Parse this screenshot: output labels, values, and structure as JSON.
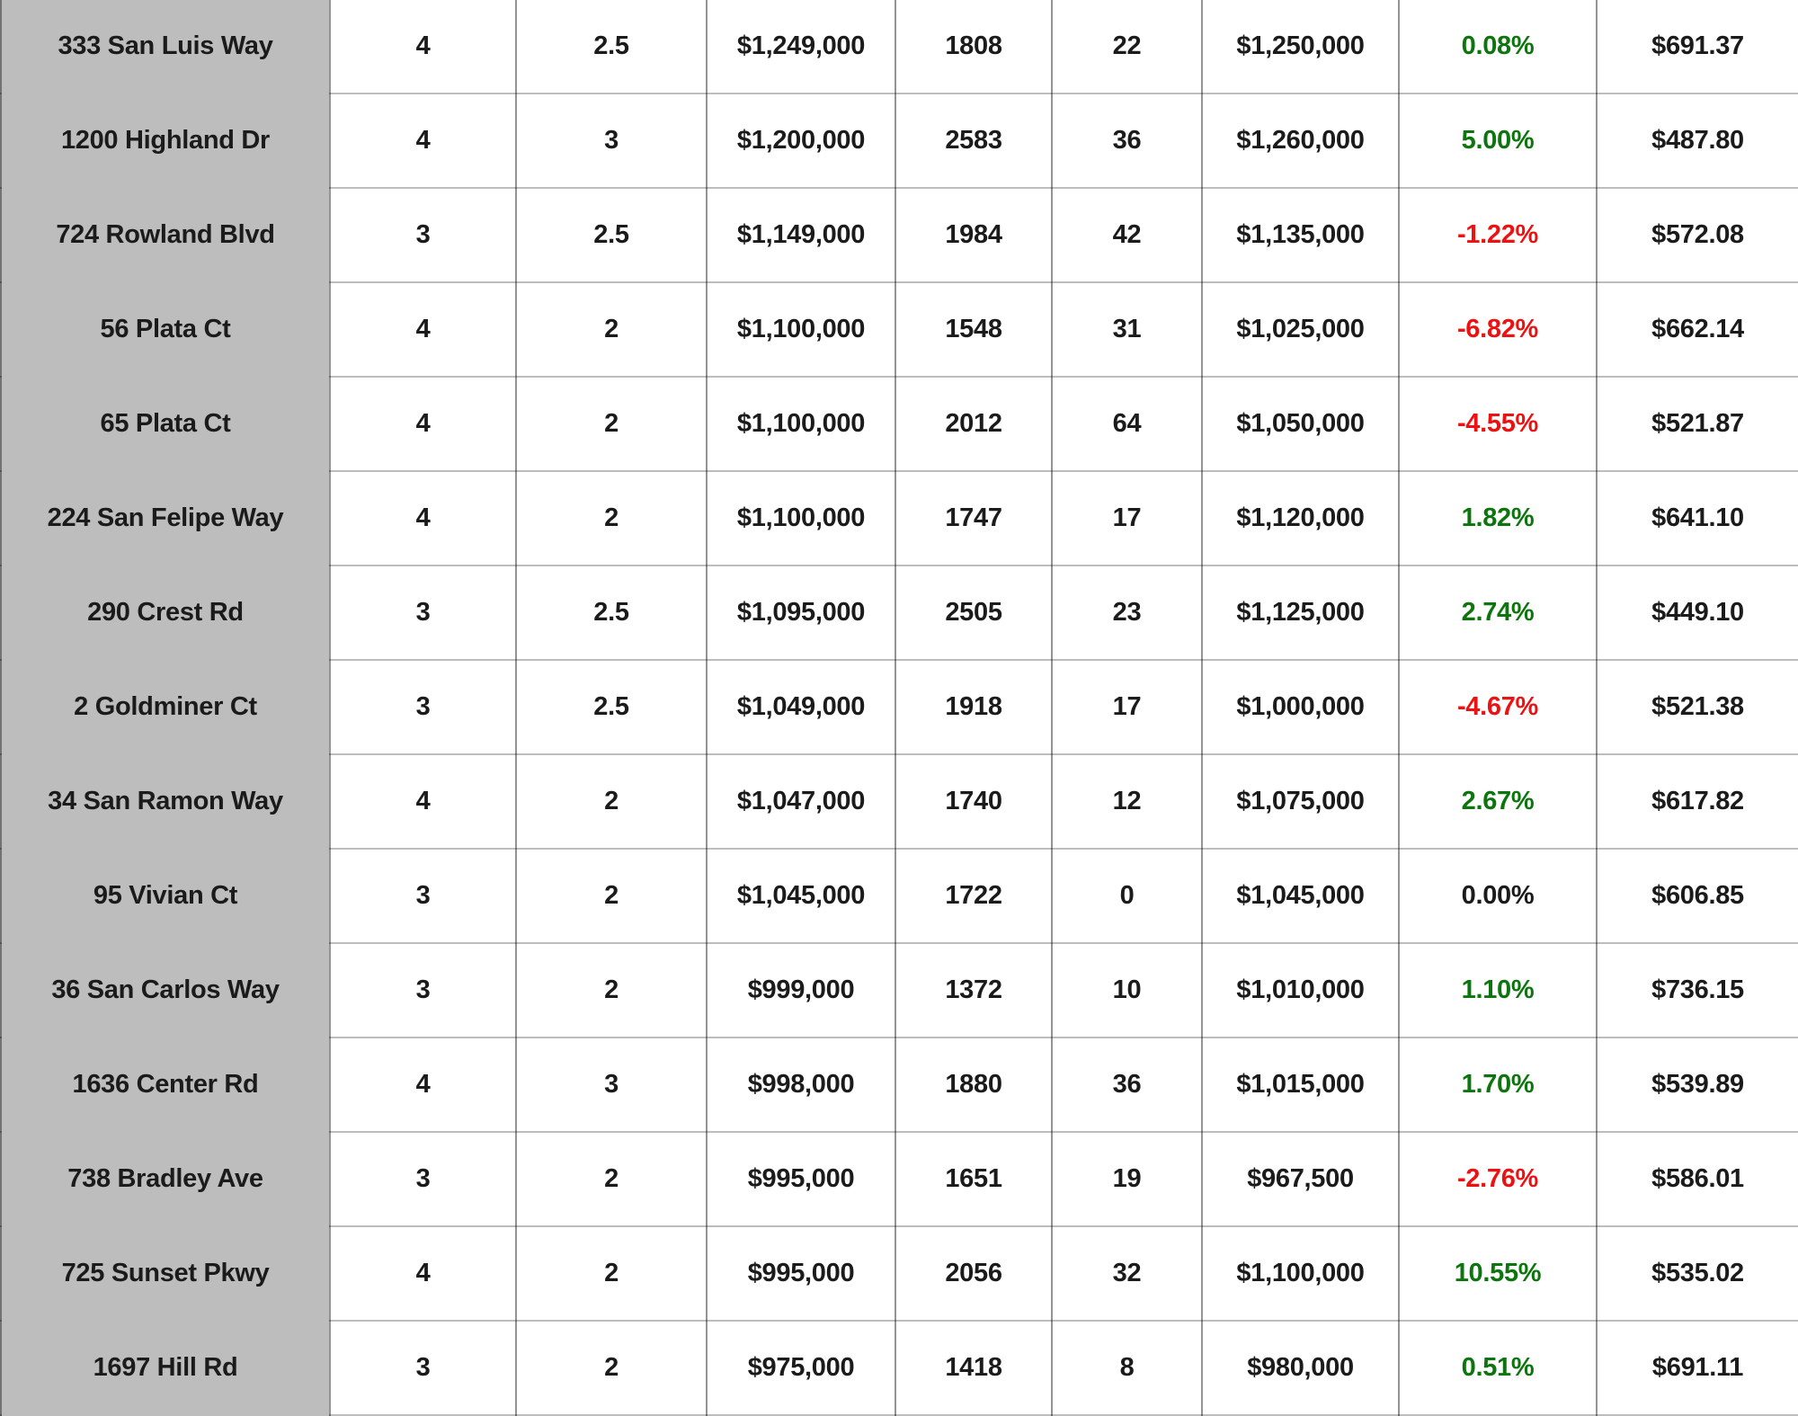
{
  "colors": {
    "positive": "#0d750d",
    "negative": "#ee1111",
    "neutral_text": "#1b1b1b",
    "address_column_bg": "#bdbdbd"
  },
  "table": {
    "columns": [
      {
        "key": "address",
        "name": "address"
      },
      {
        "key": "beds",
        "name": "beds"
      },
      {
        "key": "baths",
        "name": "baths"
      },
      {
        "key": "list_price",
        "name": "list-price"
      },
      {
        "key": "sqft",
        "name": "square-feet"
      },
      {
        "key": "days_on_market",
        "name": "days-on-market"
      },
      {
        "key": "sold_price",
        "name": "sold-price"
      },
      {
        "key": "pct_change",
        "name": "percent-over-under-list"
      },
      {
        "key": "price_per_sqft",
        "name": "price-per-sqft"
      }
    ],
    "rows": [
      {
        "address": "333 San Luis Way",
        "beds": "4",
        "baths": "2.5",
        "list_price": "$1,249,000",
        "sqft": "1808",
        "days_on_market": "22",
        "sold_price": "$1,250,000",
        "pct_change": "0.08%",
        "pct_color": "green",
        "price_per_sqft": "$691.37"
      },
      {
        "address": "1200 Highland Dr",
        "beds": "4",
        "baths": "3",
        "list_price": "$1,200,000",
        "sqft": "2583",
        "days_on_market": "36",
        "sold_price": "$1,260,000",
        "pct_change": "5.00%",
        "pct_color": "green",
        "price_per_sqft": "$487.80"
      },
      {
        "address": "724 Rowland Blvd",
        "beds": "3",
        "baths": "2.5",
        "list_price": "$1,149,000",
        "sqft": "1984",
        "days_on_market": "42",
        "sold_price": "$1,135,000",
        "pct_change": "-1.22%",
        "pct_color": "red",
        "price_per_sqft": "$572.08"
      },
      {
        "address": "56 Plata Ct",
        "beds": "4",
        "baths": "2",
        "list_price": "$1,100,000",
        "sqft": "1548",
        "days_on_market": "31",
        "sold_price": "$1,025,000",
        "pct_change": "-6.82%",
        "pct_color": "red",
        "price_per_sqft": "$662.14"
      },
      {
        "address": "65 Plata Ct",
        "beds": "4",
        "baths": "2",
        "list_price": "$1,100,000",
        "sqft": "2012",
        "days_on_market": "64",
        "sold_price": "$1,050,000",
        "pct_change": "-4.55%",
        "pct_color": "red",
        "price_per_sqft": "$521.87"
      },
      {
        "address": "224 San Felipe Way",
        "beds": "4",
        "baths": "2",
        "list_price": "$1,100,000",
        "sqft": "1747",
        "days_on_market": "17",
        "sold_price": "$1,120,000",
        "pct_change": "1.82%",
        "pct_color": "green",
        "price_per_sqft": "$641.10"
      },
      {
        "address": "290 Crest Rd",
        "beds": "3",
        "baths": "2.5",
        "list_price": "$1,095,000",
        "sqft": "2505",
        "days_on_market": "23",
        "sold_price": "$1,125,000",
        "pct_change": "2.74%",
        "pct_color": "green",
        "price_per_sqft": "$449.10"
      },
      {
        "address": "2 Goldminer Ct",
        "beds": "3",
        "baths": "2.5",
        "list_price": "$1,049,000",
        "sqft": "1918",
        "days_on_market": "17",
        "sold_price": "$1,000,000",
        "pct_change": "-4.67%",
        "pct_color": "red",
        "price_per_sqft": "$521.38"
      },
      {
        "address": "34 San Ramon Way",
        "beds": "4",
        "baths": "2",
        "list_price": "$1,047,000",
        "sqft": "1740",
        "days_on_market": "12",
        "sold_price": "$1,075,000",
        "pct_change": "2.67%",
        "pct_color": "green",
        "price_per_sqft": "$617.82"
      },
      {
        "address": "95 Vivian Ct",
        "beds": "3",
        "baths": "2",
        "list_price": "$1,045,000",
        "sqft": "1722",
        "days_on_market": "0",
        "sold_price": "$1,045,000",
        "pct_change": "0.00%",
        "pct_color": "neutral",
        "price_per_sqft": "$606.85"
      },
      {
        "address": "36 San Carlos Way",
        "beds": "3",
        "baths": "2",
        "list_price": "$999,000",
        "sqft": "1372",
        "days_on_market": "10",
        "sold_price": "$1,010,000",
        "pct_change": "1.10%",
        "pct_color": "green",
        "price_per_sqft": "$736.15"
      },
      {
        "address": "1636 Center Rd",
        "beds": "4",
        "baths": "3",
        "list_price": "$998,000",
        "sqft": "1880",
        "days_on_market": "36",
        "sold_price": "$1,015,000",
        "pct_change": "1.70%",
        "pct_color": "green",
        "price_per_sqft": "$539.89"
      },
      {
        "address": "738 Bradley Ave",
        "beds": "3",
        "baths": "2",
        "list_price": "$995,000",
        "sqft": "1651",
        "days_on_market": "19",
        "sold_price": "$967,500",
        "pct_change": "-2.76%",
        "pct_color": "red",
        "price_per_sqft": "$586.01"
      },
      {
        "address": "725 Sunset Pkwy",
        "beds": "4",
        "baths": "2",
        "list_price": "$995,000",
        "sqft": "2056",
        "days_on_market": "32",
        "sold_price": "$1,100,000",
        "pct_change": "10.55%",
        "pct_color": "green",
        "price_per_sqft": "$535.02"
      },
      {
        "address": "1697 Hill Rd",
        "beds": "3",
        "baths": "2",
        "list_price": "$975,000",
        "sqft": "1418",
        "days_on_market": "8",
        "sold_price": "$980,000",
        "pct_change": "0.51%",
        "pct_color": "green",
        "price_per_sqft": "$691.11"
      }
    ]
  }
}
